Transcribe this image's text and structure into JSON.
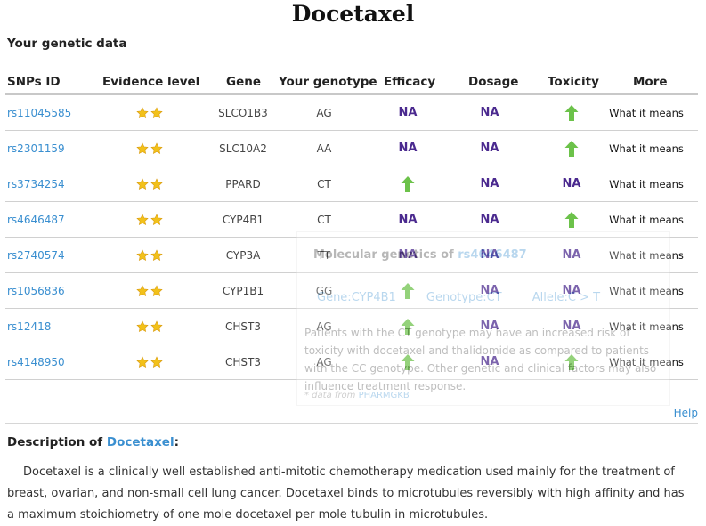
{
  "page": {
    "title": "Docetaxel"
  },
  "section": {
    "title": "Your genetic data"
  },
  "table": {
    "headers": {
      "snp": "SNPs ID",
      "evidence": "Evidence level",
      "gene": "Gene",
      "genotype": "Your genotype",
      "efficacy": "Efficacy",
      "dosage": "Dosage",
      "toxicity": "Toxicity",
      "more": "More"
    },
    "rows": [
      {
        "snp": "rs11045585",
        "stars": 2,
        "gene": "SLCO1B3",
        "genotype": "AG",
        "efficacy": "NA",
        "dosage": "NA",
        "toxicity": "up-arrow",
        "more": "What it means"
      },
      {
        "snp": "rs2301159",
        "stars": 2,
        "gene": "SLC10A2",
        "genotype": "AA",
        "efficacy": "NA",
        "dosage": "NA",
        "toxicity": "up-arrow",
        "more": "What it means"
      },
      {
        "snp": "rs3734254",
        "stars": 2,
        "gene": "PPARD",
        "genotype": "CT",
        "efficacy": "up-arrow",
        "dosage": "NA",
        "toxicity": "NA",
        "more": "What it means"
      },
      {
        "snp": "rs4646487",
        "stars": 2,
        "gene": "CYP4B1",
        "genotype": "CT",
        "efficacy": "NA",
        "dosage": "NA",
        "toxicity": "up-arrow",
        "more": "What it means"
      },
      {
        "snp": "rs2740574",
        "stars": 2,
        "gene": "CYP3A",
        "genotype": "TT",
        "efficacy": "NA",
        "dosage": "NA",
        "toxicity": "NA",
        "more": "What it means"
      },
      {
        "snp": "rs1056836",
        "stars": 2,
        "gene": "CYP1B1",
        "genotype": "GG",
        "efficacy": "up-arrow",
        "dosage": "NA",
        "toxicity": "NA",
        "more": "What it means"
      },
      {
        "snp": "rs12418",
        "stars": 2,
        "gene": "CHST3",
        "genotype": "AG",
        "efficacy": "up-arrow",
        "dosage": "NA",
        "toxicity": "NA",
        "more": "What it means"
      },
      {
        "snp": "rs4148950",
        "stars": 2,
        "gene": "CHST3",
        "genotype": "AG",
        "efficacy": "up-arrow",
        "dosage": "NA",
        "toxicity": "up-arrow",
        "more": "What it means"
      }
    ]
  },
  "tooltip": {
    "title_prefix": "Molecular genetics of",
    "title_snp": "rs4646487",
    "gene": "Gene:CYP4B1",
    "genotype": "Genotype:CT",
    "allele": "Allele:C > T",
    "body": "Patients with the CT genotype may have an increased risk of toxicity with docetaxel and thalidomide as compared to patients with the CC genotype. Other genetic and clinical factors may also influence treatment response.",
    "source_prefix": "* data from",
    "source": "PHARMGKB"
  },
  "help": {
    "label": "Help"
  },
  "description": {
    "title_prefix": "Description of",
    "title_link": "Docetaxel",
    "title_suffix": ":",
    "text": "Docetaxel is a clinically well established anti-mitotic chemotherapy medication used mainly for the treatment of breast, ovarian, and non-small cell lung cancer. Docetaxel binds to microtubules reversibly with high affinity and has a maximum stoichiometry of one mole docetaxel per mole tubulin in microtubules."
  },
  "colors": {
    "link": "#3a8fd0",
    "na": "#4b2a8f",
    "arrow": "#6cc24a",
    "star": "#f2c11a"
  }
}
